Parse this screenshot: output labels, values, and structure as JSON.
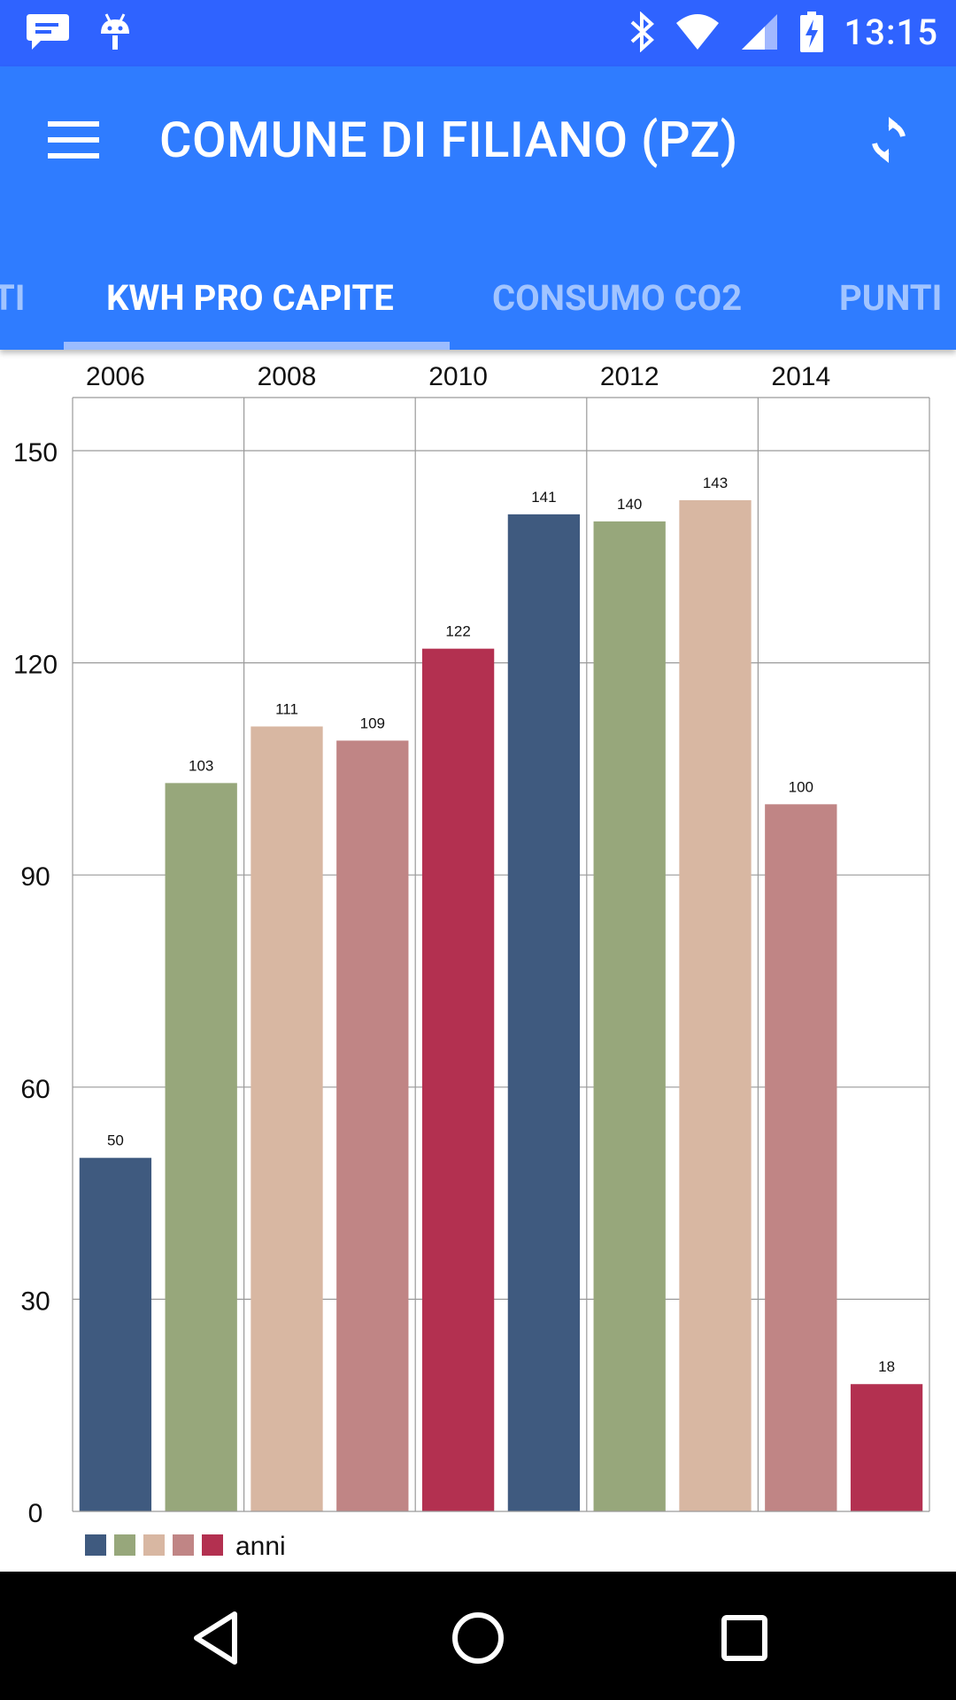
{
  "status_bar": {
    "time": "13:15",
    "left_icons": [
      "message-icon",
      "android-debug-icon"
    ],
    "right_icons": [
      "bluetooth-icon",
      "wifi-icon",
      "cellular-icon",
      "battery-charging-icon"
    ]
  },
  "app_bar": {
    "title": "COMUNE DI FILIANO (PZ)",
    "menu_icon": "menu-icon",
    "refresh_icon": "refresh-icon"
  },
  "tabs": [
    {
      "label": "TI",
      "active": false
    },
    {
      "label": "KWH PRO CAPITE",
      "active": true
    },
    {
      "label": "CONSUMO CO2",
      "active": false
    },
    {
      "label": "PUNTI",
      "active": false
    }
  ],
  "colors": {
    "status_bar": "#2f63ff",
    "app_bar": "#2f7cff",
    "series": [
      "#3f5a7f",
      "#97a77b",
      "#d8b7a2",
      "#c08585",
      "#b33050"
    ]
  },
  "chart_data": {
    "type": "bar",
    "top_axis_labels": [
      "2006",
      "2008",
      "2010",
      "2012",
      "2014"
    ],
    "values": [
      50,
      103,
      111,
      109,
      122,
      141,
      140,
      143,
      100,
      18
    ],
    "y_ticks": [
      0,
      30,
      60,
      90,
      120,
      150
    ],
    "ylim": [
      0,
      150
    ],
    "legend": {
      "label": "anni",
      "position": "bottom-left"
    },
    "grid": true
  },
  "nav_bar": {
    "buttons": [
      "back-icon",
      "home-icon",
      "recents-icon"
    ]
  }
}
